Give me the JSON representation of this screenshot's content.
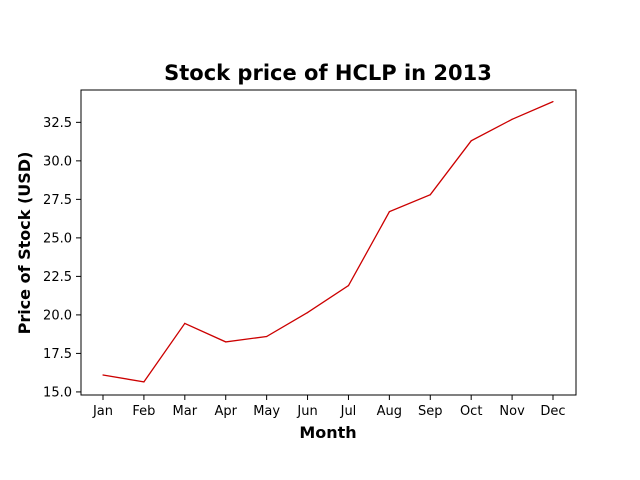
{
  "chart_data": {
    "type": "line",
    "title": "Stock price of HCLP in 2013",
    "xlabel": "Month",
    "ylabel": "Price of Stock (USD)",
    "categories": [
      "Jan",
      "Feb",
      "Mar",
      "Apr",
      "May",
      "Jun",
      "Jul",
      "Aug",
      "Sep",
      "Oct",
      "Nov",
      "Dec"
    ],
    "series": [
      {
        "values": [
          16.1,
          15.65,
          19.45,
          18.25,
          18.6,
          20.15,
          21.9,
          26.7,
          27.8,
          31.3,
          32.7,
          33.85
        ],
        "color": "#cc0000"
      }
    ],
    "ylim": [
      14.8,
      34.6
    ],
    "yticks": [
      15.0,
      17.5,
      20.0,
      22.5,
      25.0,
      27.5,
      30.0,
      32.5
    ],
    "ytick_labels": [
      "15.0",
      "17.5",
      "20.0",
      "22.5",
      "25.0",
      "27.5",
      "30.0",
      "32.5"
    ],
    "grid": false,
    "legend": "none"
  }
}
